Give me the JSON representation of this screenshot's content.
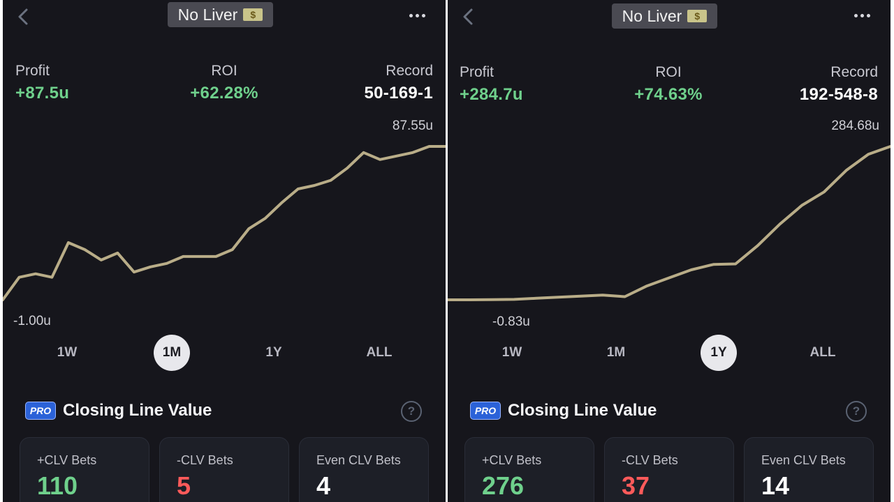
{
  "panels": [
    {
      "title": "No Liver",
      "title_icon": "money-bag-icon",
      "profit_label": "Profit",
      "profit_value": "+87.5u",
      "roi_label": "ROI",
      "roi_value": "+62.28%",
      "record_label": "Record",
      "record_value": "50-169-1",
      "chart_max_label": "87.55u",
      "chart_min_label": "-1.00u",
      "ranges": [
        "1W",
        "1M",
        "1Y",
        "ALL"
      ],
      "active_range": "1M",
      "clv_badge": "PRO",
      "clv_title": "Closing Line Value",
      "help_symbol": "?",
      "cards": [
        {
          "label": "+CLV Bets",
          "value": "110",
          "color": "#6fd08c"
        },
        {
          "label": "-CLV Bets",
          "value": "5",
          "color": "#ff5a5a"
        },
        {
          "label": "Even CLV Bets",
          "value": "4",
          "color": "#ffffff"
        }
      ]
    },
    {
      "title": "No Liver",
      "title_icon": "money-bag-icon",
      "profit_label": "Profit",
      "profit_value": "+284.7u",
      "roi_label": "ROI",
      "roi_value": "+74.63%",
      "record_label": "Record",
      "record_value": "192-548-8",
      "chart_max_label": "284.68u",
      "chart_min_label": "-0.83u",
      "ranges": [
        "1W",
        "1M",
        "1Y",
        "ALL"
      ],
      "active_range": "1Y",
      "clv_badge": "PRO",
      "clv_title": "Closing Line Value",
      "help_symbol": "?",
      "cards": [
        {
          "label": "+CLV Bets",
          "value": "276",
          "color": "#6fd08c"
        },
        {
          "label": "-CLV Bets",
          "value": "37",
          "color": "#ff5a5a"
        },
        {
          "label": "Even CLV Bets",
          "value": "14",
          "color": "#ffffff"
        }
      ]
    }
  ],
  "colors": {
    "background": "#16161c",
    "positive": "#6fd08c",
    "negative": "#ff5a5a",
    "line": "#b9ad88",
    "pro_badge": "#2b62d8"
  },
  "chart_data": [
    {
      "type": "line",
      "title": "",
      "ylim": [
        -1.0,
        87.55
      ],
      "series": [
        {
          "values": [
            -1.0,
            12,
            14,
            12,
            32,
            28,
            22,
            26,
            15,
            18,
            20,
            24,
            24,
            24,
            28,
            40,
            46,
            55,
            63,
            65,
            68,
            75,
            84,
            80,
            82,
            84,
            87.55,
            87.55
          ]
        }
      ]
    },
    {
      "type": "line",
      "title": "",
      "ylim": [
        -0.83,
        284.68
      ],
      "series": [
        {
          "values": [
            -0.83,
            -0.8,
            -0.5,
            0,
            2,
            4,
            6,
            8,
            5,
            25,
            40,
            55,
            65,
            66,
            100,
            140,
            175,
            200,
            240,
            270,
            284.68
          ]
        }
      ]
    }
  ]
}
